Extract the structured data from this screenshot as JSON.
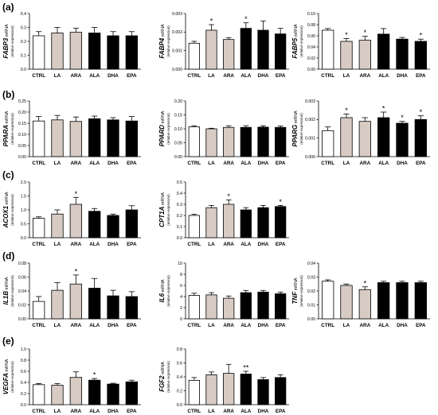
{
  "panel_labels": [
    "(a)",
    "(b)",
    "(c)",
    "(d)",
    "(e)"
  ],
  "colors": {
    "CTRL": "#ffffff",
    "LA": "#d7cbc3",
    "ARA": "#d7cbc3",
    "ALA": "#000000",
    "DHA": "#000000",
    "EPA": "#000000"
  },
  "chart_data": [
    {
      "type": "bar",
      "gene": "FABP3",
      "mrna": "mRNA",
      "unit": "(relative expression)",
      "categories": [
        "CTRL",
        "LA",
        "ARA",
        "ALA",
        "DHA",
        "EPA"
      ],
      "values": [
        0.24,
        0.26,
        0.265,
        0.26,
        0.24,
        0.24
      ],
      "errors": [
        0.03,
        0.04,
        0.03,
        0.04,
        0.03,
        0.03
      ],
      "sig": [
        "",
        "",
        "",
        "",
        "",
        ""
      ],
      "ylim": [
        0,
        0.4
      ],
      "yticks": [
        "0.0",
        "0.1",
        "0.2",
        "0.3",
        "0.4"
      ]
    },
    {
      "type": "bar",
      "gene": "FABP4",
      "mrna": "mRNA",
      "unit": "(relative expression)",
      "categories": [
        "CTRL",
        "LA",
        "ARA",
        "ALA",
        "DHA",
        "EPA"
      ],
      "values": [
        0.0014,
        0.0021,
        0.0016,
        0.0022,
        0.0021,
        0.0019
      ],
      "errors": [
        0.0001,
        0.0003,
        0.0001,
        0.0003,
        0.0005,
        0.0003
      ],
      "sig": [
        "",
        "*",
        "",
        "*",
        "",
        ""
      ],
      "ylim": [
        0,
        0.003
      ],
      "yticks": [
        "0.000",
        "0.001",
        "0.002",
        "0.003"
      ]
    },
    {
      "type": "bar",
      "gene": "FABP5",
      "mrna": "mRNA",
      "unit": "(relative expression)",
      "categories": [
        "CTRL",
        "LA",
        "ARA",
        "ALA",
        "DHA",
        "EPA"
      ],
      "values": [
        0.07,
        0.05,
        0.052,
        0.063,
        0.054,
        0.05
      ],
      "errors": [
        0.003,
        0.005,
        0.007,
        0.01,
        0.003,
        0.004
      ],
      "sig": [
        "",
        "*",
        "*",
        "",
        "",
        "*"
      ],
      "ylim": [
        0,
        0.1
      ],
      "yticks": [
        "0.00",
        "0.02",
        "0.04",
        "0.06",
        "0.08",
        "0.10"
      ]
    },
    {
      "type": "bar",
      "gene": "PPARA",
      "mrna": "mRNA",
      "unit": "(relative expression)",
      "categories": [
        "CTRL",
        "LA",
        "ARA",
        "ALA",
        "DHA",
        "EPA"
      ],
      "values": [
        0.16,
        0.165,
        0.158,
        0.17,
        0.165,
        0.16
      ],
      "errors": [
        0.02,
        0.02,
        0.02,
        0.012,
        0.01,
        0.02
      ],
      "sig": [
        "",
        "",
        "",
        "",
        "",
        ""
      ],
      "ylim": [
        0,
        0.25
      ],
      "yticks": [
        "0.00",
        "0.05",
        "0.10",
        "0.15",
        "0.20",
        "0.25"
      ]
    },
    {
      "type": "bar",
      "gene": "PPARD",
      "mrna": "mRNA",
      "unit": "(relative expression)",
      "categories": [
        "CTRL",
        "LA",
        "ARA",
        "ALA",
        "DHA",
        "EPA"
      ],
      "values": [
        0.107,
        0.1,
        0.105,
        0.105,
        0.106,
        0.105
      ],
      "errors": [
        0.004,
        0.002,
        0.006,
        0.006,
        0.005,
        0.005
      ],
      "sig": [
        "",
        "",
        "",
        "",
        "",
        ""
      ],
      "ylim": [
        0,
        0.2
      ],
      "yticks": [
        "0.00",
        "0.05",
        "0.10",
        "0.15",
        "0.20"
      ]
    },
    {
      "type": "bar",
      "gene": "PPARG",
      "mrna": "mRNA",
      "unit": "(relative expression)",
      "categories": [
        "CTRL",
        "LA",
        "ARA",
        "ALA",
        "DHA",
        "EPA"
      ],
      "values": [
        0.0014,
        0.0021,
        0.0019,
        0.0021,
        0.0018,
        0.002
      ],
      "errors": [
        0.0002,
        0.0002,
        0.0002,
        0.0003,
        0.0001,
        0.0002
      ],
      "sig": [
        "",
        "*",
        "",
        "*",
        "*",
        "*"
      ],
      "ylim": [
        0,
        0.003
      ],
      "yticks": [
        "0.000",
        "0.001",
        "0.002",
        "0.003"
      ]
    },
    {
      "type": "bar",
      "gene": "ACOX1",
      "mrna": "mRNA",
      "unit": "(relative expression)",
      "categories": [
        "CTRL",
        "LA",
        "ARA",
        "ALA",
        "DHA",
        "EPA"
      ],
      "values": [
        0.7,
        0.85,
        1.2,
        0.95,
        0.8,
        1.0
      ],
      "errors": [
        0.05,
        0.15,
        0.25,
        0.1,
        0.05,
        0.15
      ],
      "sig": [
        "",
        "",
        "*",
        "",
        "",
        ""
      ],
      "ylim": [
        0,
        2.0
      ],
      "yticks": [
        "0.0",
        "0.5",
        "1.0",
        "1.5",
        "2.0"
      ]
    },
    {
      "type": "bar",
      "gene": "CPT1A",
      "mrna": "mRNA",
      "unit": "(relative expression)",
      "categories": [
        "CTRL",
        "LA",
        "ARA",
        "ALA",
        "DHA",
        "EPA"
      ],
      "values": [
        0.2,
        0.27,
        0.3,
        0.25,
        0.27,
        0.28
      ],
      "errors": [
        0.01,
        0.02,
        0.04,
        0.02,
        0.02,
        0.01
      ],
      "sig": [
        "",
        "",
        "*",
        "",
        "",
        "*"
      ],
      "ylim": [
        0,
        0.5
      ],
      "yticks": [
        "0.0",
        "0.1",
        "0.2",
        "0.3",
        "0.4",
        "0.5"
      ]
    },
    {
      "type": "bar",
      "gene": "IL1B",
      "mrna": "mRNA",
      "unit": "(relative expression)",
      "categories": [
        "CTRL",
        "LA",
        "ARA",
        "ALA",
        "DHA",
        "EPA"
      ],
      "values": [
        0.025,
        0.041,
        0.05,
        0.044,
        0.033,
        0.032
      ],
      "errors": [
        0.007,
        0.011,
        0.013,
        0.014,
        0.008,
        0.007
      ],
      "sig": [
        "",
        "",
        "*",
        "",
        "",
        ""
      ],
      "ylim": [
        0,
        0.08
      ],
      "yticks": [
        "0.00",
        "0.02",
        "0.04",
        "0.06",
        "0.08"
      ]
    },
    {
      "type": "bar",
      "gene": "IL6",
      "mrna": "mRNA",
      "unit": "(relative expression)",
      "categories": [
        "CTRL",
        "LA",
        "ARA",
        "ALA",
        "DHA",
        "EPA"
      ],
      "values": [
        4.2,
        4.3,
        3.7,
        4.7,
        4.8,
        4.5
      ],
      "errors": [
        0.4,
        0.4,
        0.4,
        0.4,
        0.3,
        0.3
      ],
      "sig": [
        "",
        "",
        "",
        "",
        "",
        ""
      ],
      "ylim": [
        0,
        10
      ],
      "yticks": [
        "0",
        "2",
        "4",
        "6",
        "8",
        "10"
      ]
    },
    {
      "type": "bar",
      "gene": "TNF",
      "mrna": "mRNA",
      "unit": "(relative expression)",
      "categories": [
        "CTRL",
        "LA",
        "ARA",
        "ALA",
        "DHA",
        "EPA"
      ],
      "values": [
        0.027,
        0.024,
        0.021,
        0.026,
        0.026,
        0.026
      ],
      "errors": [
        0.001,
        0.001,
        0.002,
        0.001,
        0.001,
        0.001
      ],
      "sig": [
        "",
        "",
        "*",
        "",
        "",
        ""
      ],
      "ylim": [
        0,
        0.04
      ],
      "yticks": [
        "0.00",
        "0.01",
        "0.02",
        "0.03",
        "0.04"
      ]
    },
    {
      "type": "bar",
      "gene": "VEGFA",
      "mrna": "mRNA",
      "unit": "(relative expression)",
      "categories": [
        "CTRL",
        "LA",
        "ARA",
        "ALA",
        "DHA",
        "EPA"
      ],
      "values": [
        0.36,
        0.35,
        0.49,
        0.44,
        0.37,
        0.41
      ],
      "errors": [
        0.02,
        0.03,
        0.1,
        0.03,
        0.015,
        0.03
      ],
      "sig": [
        "",
        "",
        "",
        "*",
        "",
        ""
      ],
      "ylim": [
        0,
        1.0
      ],
      "yticks": [
        "0.0",
        "0.2",
        "0.4",
        "0.6",
        "0.8",
        "1.0"
      ]
    },
    {
      "type": "bar",
      "gene": "FGF2",
      "mrna": "mRNA",
      "unit": "(relative expression)",
      "categories": [
        "CTRL",
        "LA",
        "ARA",
        "ALA",
        "DHA",
        "EPA"
      ],
      "values": [
        0.35,
        0.43,
        0.45,
        0.44,
        0.36,
        0.39
      ],
      "errors": [
        0.04,
        0.04,
        0.13,
        0.04,
        0.03,
        0.04
      ],
      "sig": [
        "",
        "",
        "",
        "**",
        "",
        ""
      ],
      "ylim": [
        0,
        0.8
      ],
      "yticks": [
        "0.0",
        "0.2",
        "0.4",
        "0.6",
        "0.8"
      ]
    }
  ]
}
